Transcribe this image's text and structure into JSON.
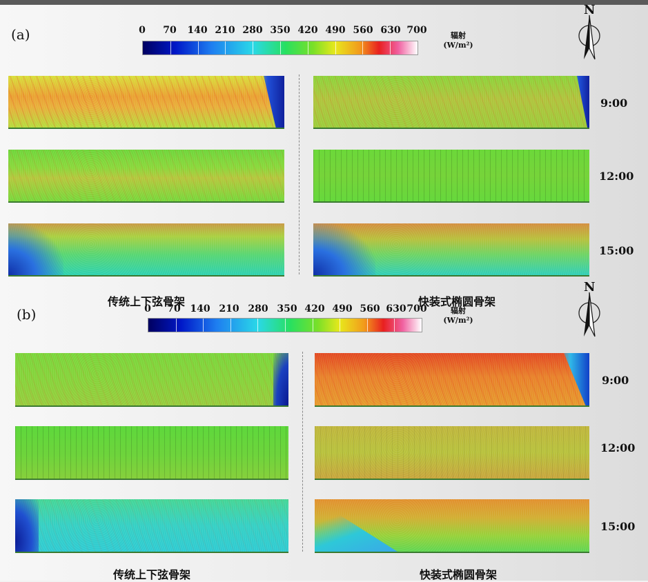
{
  "colorbar": {
    "ticks": [
      "0",
      "70",
      "140",
      "210",
      "280",
      "350",
      "420",
      "490",
      "560",
      "630",
      "700"
    ],
    "unit_label": "辐射",
    "unit": "(W/m²)",
    "colors": [
      "#000060",
      "#0018c8",
      "#1e7ef0",
      "#2ad8e8",
      "#28e060",
      "#7ae028",
      "#e8e81c",
      "#f29a1c",
      "#e82020",
      "#f060a0",
      "#ffffff"
    ]
  },
  "compass": {
    "north": "N"
  },
  "times": [
    "9:00",
    "12:00",
    "15:00"
  ],
  "panels": [
    {
      "letter": "(a)",
      "left_caption": "传统上下弦骨架",
      "right_caption": "快装式椭圆骨架",
      "left_maps": [
        {
          "time": "9:00",
          "dominant_w_m2": 490,
          "shadow": "right-edge"
        },
        {
          "time": "12:00",
          "dominant_w_m2": 380,
          "shadow": "none"
        },
        {
          "time": "15:00",
          "dominant_w_m2": 400,
          "shadow": "left-bottom"
        }
      ],
      "right_maps": [
        {
          "time": "9:00",
          "dominant_w_m2": 420,
          "shadow": "right-edge"
        },
        {
          "time": "12:00",
          "dominant_w_m2": 370,
          "shadow": "none"
        },
        {
          "time": "15:00",
          "dominant_w_m2": 420,
          "shadow": "left-bottom"
        }
      ]
    },
    {
      "letter": "(b)",
      "left_caption": "传统上下弦骨架",
      "right_caption": "快装式椭圆骨架",
      "left_maps": [
        {
          "time": "9:00",
          "dominant_w_m2": 380,
          "shadow": "right-edge"
        },
        {
          "time": "12:00",
          "dominant_w_m2": 370,
          "shadow": "none"
        },
        {
          "time": "15:00",
          "dominant_w_m2": 260,
          "shadow": "left-edge"
        }
      ],
      "right_maps": [
        {
          "time": "9:00",
          "dominant_w_m2": 540,
          "shadow": "right-edge"
        },
        {
          "time": "12:00",
          "dominant_w_m2": 460,
          "shadow": "none"
        },
        {
          "time": "15:00",
          "dominant_w_m2": 470,
          "shadow": "left-bottom"
        }
      ]
    }
  ]
}
